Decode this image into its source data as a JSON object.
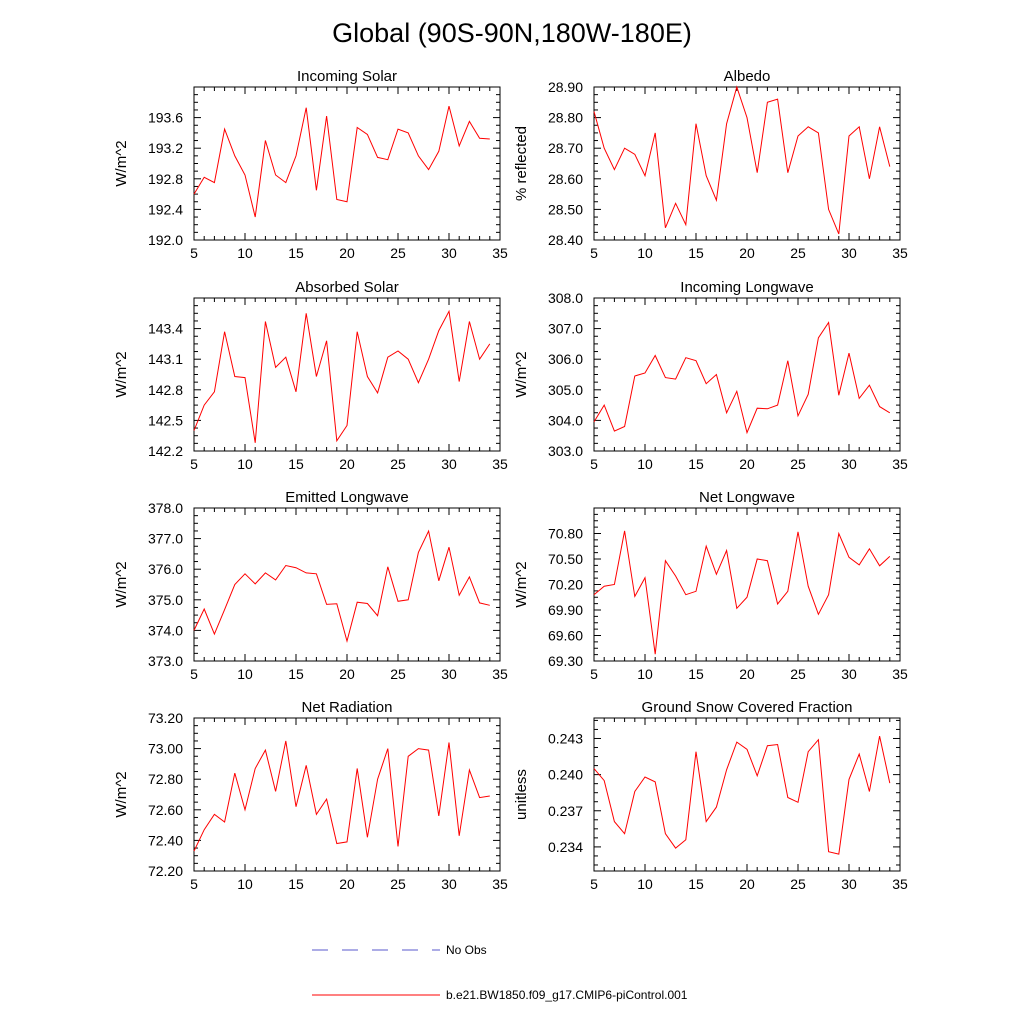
{
  "figure": {
    "title": "Global (90S-90N,180W-180E)",
    "legend": [
      {
        "label": "No Obs",
        "style": "dashed",
        "color": "#5a5acd"
      },
      {
        "label": "b.e21.BW1850.f09_g17.CMIP6-piControl.001",
        "style": "solid",
        "color": "#ff0000"
      }
    ]
  },
  "chart_data": [
    {
      "type": "line",
      "title": "Incoming Solar",
      "xlabel": "",
      "ylabel": "W/m^2",
      "xlim": [
        5,
        35
      ],
      "ylim": [
        192.0,
        194.0
      ],
      "xticks": [
        5,
        10,
        15,
        20,
        25,
        30,
        35
      ],
      "xtick_labels": [
        "5",
        "10",
        "15",
        "20",
        "25",
        "30",
        "35"
      ],
      "yticks": [
        192.0,
        192.4,
        192.8,
        193.2,
        193.6
      ],
      "ytick_labels": [
        "192.0",
        "192.4",
        "192.8",
        "193.2",
        "193.6"
      ],
      "series": [
        {
          "name": "b.e21.BW1850.f09_g17.CMIP6-piControl.001",
          "color": "#ff0000",
          "x": [
            5,
            6,
            7,
            8,
            9,
            10,
            11,
            12,
            13,
            14,
            15,
            16,
            17,
            18,
            19,
            20,
            21,
            22,
            23,
            24,
            25,
            26,
            27,
            28,
            29,
            30,
            31,
            32,
            33,
            34
          ],
          "y": [
            192.6,
            192.82,
            192.75,
            193.45,
            193.1,
            192.85,
            192.3,
            193.3,
            192.85,
            192.75,
            193.1,
            193.73,
            192.65,
            193.62,
            192.53,
            192.5,
            193.47,
            193.38,
            193.08,
            193.05,
            193.45,
            193.4,
            193.1,
            192.92,
            193.16,
            193.75,
            193.23,
            193.55,
            193.33,
            193.32
          ]
        }
      ]
    },
    {
      "type": "line",
      "title": "Albedo",
      "xlabel": "",
      "ylabel": "% reflected",
      "xlim": [
        5,
        35
      ],
      "ylim": [
        28.4,
        28.9
      ],
      "xticks": [
        5,
        10,
        15,
        20,
        25,
        30,
        35
      ],
      "xtick_labels": [
        "5",
        "10",
        "15",
        "20",
        "25",
        "30",
        "35"
      ],
      "yticks": [
        28.4,
        28.5,
        28.6,
        28.7,
        28.8,
        28.9
      ],
      "ytick_labels": [
        "28.40",
        "28.50",
        "28.60",
        "28.70",
        "28.80",
        "28.90"
      ],
      "series": [
        {
          "name": "b.e21.BW1850.f09_g17.CMIP6-piControl.001",
          "color": "#ff0000",
          "x": [
            5,
            6,
            7,
            8,
            9,
            10,
            11,
            12,
            13,
            14,
            15,
            16,
            17,
            18,
            19,
            20,
            21,
            22,
            23,
            24,
            25,
            26,
            27,
            28,
            29,
            30,
            31,
            32,
            33,
            34
          ],
          "y": [
            28.82,
            28.7,
            28.63,
            28.7,
            28.68,
            28.61,
            28.75,
            28.44,
            28.52,
            28.45,
            28.78,
            28.61,
            28.53,
            28.78,
            28.9,
            28.8,
            28.62,
            28.85,
            28.86,
            28.62,
            28.74,
            28.77,
            28.75,
            28.5,
            28.42,
            28.74,
            28.77,
            28.6,
            28.77,
            28.64
          ]
        }
      ]
    },
    {
      "type": "line",
      "title": "Absorbed Solar",
      "xlabel": "",
      "ylabel": "W/m^2",
      "xlim": [
        5,
        35
      ],
      "ylim": [
        142.2,
        143.7
      ],
      "xticks": [
        5,
        10,
        15,
        20,
        25,
        30,
        35
      ],
      "xtick_labels": [
        "5",
        "10",
        "15",
        "20",
        "25",
        "30",
        "35"
      ],
      "yticks": [
        142.2,
        142.5,
        142.8,
        143.1,
        143.4
      ],
      "ytick_labels": [
        "142.2",
        "142.5",
        "142.8",
        "143.1",
        "143.4"
      ],
      "series": [
        {
          "name": "b.e21.BW1850.f09_g17.CMIP6-piControl.001",
          "color": "#ff0000",
          "x": [
            5,
            6,
            7,
            8,
            9,
            10,
            11,
            12,
            13,
            14,
            15,
            16,
            17,
            18,
            19,
            20,
            21,
            22,
            23,
            24,
            25,
            26,
            27,
            28,
            29,
            30,
            31,
            32,
            33,
            34
          ],
          "y": [
            142.4,
            142.65,
            142.78,
            143.37,
            142.93,
            142.92,
            142.28,
            143.47,
            143.02,
            143.12,
            142.78,
            143.55,
            142.93,
            143.28,
            142.3,
            142.45,
            143.37,
            142.93,
            142.77,
            143.12,
            143.18,
            143.1,
            142.87,
            143.1,
            143.38,
            143.57,
            142.88,
            143.47,
            143.1,
            143.25
          ]
        }
      ]
    },
    {
      "type": "line",
      "title": "Incoming Longwave",
      "xlabel": "",
      "ylabel": "W/m^2",
      "xlim": [
        5,
        35
      ],
      "ylim": [
        303.0,
        308.0
      ],
      "xticks": [
        5,
        10,
        15,
        20,
        25,
        30,
        35
      ],
      "xtick_labels": [
        "5",
        "10",
        "15",
        "20",
        "25",
        "30",
        "35"
      ],
      "yticks": [
        303.0,
        304.0,
        305.0,
        306.0,
        307.0,
        308.0
      ],
      "ytick_labels": [
        "303.0",
        "304.0",
        "305.0",
        "306.0",
        "307.0",
        "308.0"
      ],
      "series": [
        {
          "name": "b.e21.BW1850.f09_g17.CMIP6-piControl.001",
          "color": "#ff0000",
          "x": [
            5,
            6,
            7,
            8,
            9,
            10,
            11,
            12,
            13,
            14,
            15,
            16,
            17,
            18,
            19,
            20,
            21,
            22,
            23,
            24,
            25,
            26,
            27,
            28,
            29,
            30,
            31,
            32,
            33,
            34
          ],
          "y": [
            303.95,
            304.5,
            303.65,
            303.8,
            305.45,
            305.55,
            306.12,
            305.4,
            305.35,
            306.05,
            305.95,
            305.2,
            305.5,
            304.25,
            304.95,
            303.6,
            304.4,
            304.38,
            304.5,
            305.95,
            304.15,
            304.85,
            306.7,
            307.2,
            304.82,
            306.2,
            304.72,
            305.15,
            304.45,
            304.25
          ]
        }
      ]
    },
    {
      "type": "line",
      "title": "Emitted Longwave",
      "xlabel": "",
      "ylabel": "W/m^2",
      "xlim": [
        5,
        35
      ],
      "ylim": [
        373.0,
        378.0
      ],
      "xticks": [
        5,
        10,
        15,
        20,
        25,
        30,
        35
      ],
      "xtick_labels": [
        "5",
        "10",
        "15",
        "20",
        "25",
        "30",
        "35"
      ],
      "yticks": [
        373.0,
        374.0,
        375.0,
        376.0,
        377.0,
        378.0
      ],
      "ytick_labels": [
        "373.0",
        "374.0",
        "375.0",
        "376.0",
        "377.0",
        "378.0"
      ],
      "series": [
        {
          "name": "b.e21.BW1850.f09_g17.CMIP6-piControl.001",
          "color": "#ff0000",
          "x": [
            5,
            6,
            7,
            8,
            9,
            10,
            11,
            12,
            13,
            14,
            15,
            16,
            17,
            18,
            19,
            20,
            21,
            22,
            23,
            24,
            25,
            26,
            27,
            28,
            29,
            30,
            31,
            32,
            33,
            34
          ],
          "y": [
            374.0,
            374.7,
            373.88,
            374.68,
            375.5,
            375.85,
            375.52,
            375.88,
            375.65,
            376.12,
            376.05,
            375.88,
            375.85,
            374.85,
            374.87,
            373.65,
            374.92,
            374.88,
            374.48,
            376.08,
            374.95,
            375.0,
            376.55,
            377.25,
            375.62,
            376.72,
            375.15,
            375.75,
            374.9,
            374.82
          ]
        }
      ]
    },
    {
      "type": "line",
      "title": "Net Longwave",
      "xlabel": "",
      "ylabel": "W/m^2",
      "xlim": [
        5,
        35
      ],
      "ylim": [
        69.3,
        71.1
      ],
      "xticks": [
        5,
        10,
        15,
        20,
        25,
        30,
        35
      ],
      "xtick_labels": [
        "5",
        "10",
        "15",
        "20",
        "25",
        "30",
        "35"
      ],
      "yticks": [
        69.3,
        69.6,
        69.9,
        70.2,
        70.5,
        70.8
      ],
      "ytick_labels": [
        "69.30",
        "69.60",
        "69.90",
        "70.20",
        "70.50",
        "70.80"
      ],
      "series": [
        {
          "name": "b.e21.BW1850.f09_g17.CMIP6-piControl.001",
          "color": "#ff0000",
          "x": [
            5,
            6,
            7,
            8,
            9,
            10,
            11,
            12,
            13,
            14,
            15,
            16,
            17,
            18,
            19,
            20,
            21,
            22,
            23,
            24,
            25,
            26,
            27,
            28,
            29,
            30,
            31,
            32,
            33,
            34
          ],
          "y": [
            70.08,
            70.18,
            70.2,
            70.83,
            70.06,
            70.28,
            69.38,
            70.48,
            70.3,
            70.08,
            70.12,
            70.65,
            70.32,
            70.6,
            69.92,
            70.05,
            70.5,
            70.48,
            69.97,
            70.12,
            70.82,
            70.18,
            69.85,
            70.08,
            70.8,
            70.52,
            70.43,
            70.62,
            70.42,
            70.53
          ]
        }
      ]
    },
    {
      "type": "line",
      "title": "Net Radiation",
      "xlabel": "",
      "ylabel": "W/m^2",
      "xlim": [
        5,
        35
      ],
      "ylim": [
        72.2,
        73.2
      ],
      "xticks": [
        5,
        10,
        15,
        20,
        25,
        30,
        35
      ],
      "xtick_labels": [
        "5",
        "10",
        "15",
        "20",
        "25",
        "30",
        "35"
      ],
      "yticks": [
        72.2,
        72.4,
        72.6,
        72.8,
        73.0,
        73.2
      ],
      "ytick_labels": [
        "72.20",
        "72.40",
        "72.60",
        "72.80",
        "73.00",
        "73.20"
      ],
      "series": [
        {
          "name": "b.e21.BW1850.f09_g17.CMIP6-piControl.001",
          "color": "#ff0000",
          "x": [
            5,
            6,
            7,
            8,
            9,
            10,
            11,
            12,
            13,
            14,
            15,
            16,
            17,
            18,
            19,
            20,
            21,
            22,
            23,
            24,
            25,
            26,
            27,
            28,
            29,
            30,
            31,
            32,
            33,
            34
          ],
          "y": [
            72.33,
            72.47,
            72.57,
            72.52,
            72.84,
            72.6,
            72.87,
            72.99,
            72.72,
            73.05,
            72.62,
            72.89,
            72.57,
            72.67,
            72.38,
            72.39,
            72.87,
            72.42,
            72.8,
            73.0,
            72.36,
            72.95,
            73.0,
            72.99,
            72.56,
            73.04,
            72.43,
            72.86,
            72.68,
            72.69
          ]
        }
      ]
    },
    {
      "type": "line",
      "title": "Ground Snow Covered Fraction",
      "xlabel": "",
      "ylabel": "unitless",
      "xlim": [
        5,
        35
      ],
      "ylim": [
        0.232,
        0.2447
      ],
      "xticks": [
        5,
        10,
        15,
        20,
        25,
        30,
        35
      ],
      "xtick_labels": [
        "5",
        "10",
        "15",
        "20",
        "25",
        "30",
        "35"
      ],
      "yticks": [
        0.234,
        0.237,
        0.24,
        0.243
      ],
      "ytick_labels": [
        "0.234",
        "0.237",
        "0.240",
        "0.243"
      ],
      "series": [
        {
          "name": "b.e21.BW1850.f09_g17.CMIP6-piControl.001",
          "color": "#ff0000",
          "x": [
            5,
            6,
            7,
            8,
            9,
            10,
            11,
            12,
            13,
            14,
            15,
            16,
            17,
            18,
            19,
            20,
            21,
            22,
            23,
            24,
            25,
            26,
            27,
            28,
            29,
            30,
            31,
            32,
            33,
            34
          ],
          "y": [
            0.2405,
            0.2395,
            0.2361,
            0.2351,
            0.2386,
            0.2398,
            0.2394,
            0.2351,
            0.2339,
            0.2346,
            0.2419,
            0.2361,
            0.2373,
            0.2404,
            0.2427,
            0.2421,
            0.2399,
            0.2424,
            0.2425,
            0.2381,
            0.2377,
            0.2419,
            0.2429,
            0.2336,
            0.2334,
            0.2396,
            0.2417,
            0.2386,
            0.2432,
            0.2393
          ]
        }
      ]
    }
  ]
}
